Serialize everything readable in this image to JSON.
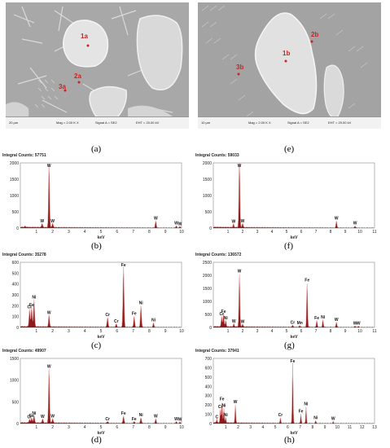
{
  "panels": [
    {
      "id": "a",
      "caption": "(a)",
      "type": "sem",
      "labels": [
        "1a",
        "2a",
        "3a"
      ],
      "scale": "20 µm",
      "mag": "Mag = 2.00 K X",
      "signal": "Signal A = SE2",
      "eht": "EHT = 20.00 kV"
    },
    {
      "id": "e",
      "caption": "(e)",
      "type": "sem",
      "labels": [
        "1b",
        "2b",
        "3b"
      ],
      "scale": "10 µm",
      "mag": "Mag = 2.00 K X",
      "signal": "Signal A = SE2",
      "eht": "EHT = 20.00 kV"
    },
    {
      "id": "b",
      "caption": "(b)",
      "type": "spectrum",
      "header": "Integral Counts: 57751"
    },
    {
      "id": "f",
      "caption": "(f)",
      "type": "spectrum",
      "header": "Integral Counts: 59033"
    },
    {
      "id": "c",
      "caption": "(c)",
      "type": "spectrum",
      "header": "Integral Counts: 35278"
    },
    {
      "id": "g",
      "caption": "(g)",
      "type": "spectrum",
      "header": "Integral Counts: 136572"
    },
    {
      "id": "d",
      "caption": "(d)",
      "type": "spectrum",
      "header": "Integral Counts: 49907"
    },
    {
      "id": "h",
      "caption": "(h)",
      "type": "spectrum",
      "header": "Integral Counts: 37941"
    }
  ],
  "chart_data": [
    {
      "type": "line",
      "panel": "b",
      "xlabel": "keV",
      "xlim": [
        0,
        10
      ],
      "ylim": [
        0,
        2000
      ],
      "yticks": [
        0,
        500,
        1000,
        1500,
        2000
      ],
      "xticks": [
        1,
        2,
        3,
        4,
        5,
        6,
        7,
        8,
        9,
        10
      ],
      "peaks": [
        {
          "x": 0.3,
          "y": 30
        },
        {
          "x": 1.35,
          "y": 120,
          "label": "W"
        },
        {
          "x": 1.78,
          "y": 1950,
          "label": "W"
        },
        {
          "x": 2.0,
          "y": 130,
          "label": "W"
        },
        {
          "x": 8.4,
          "y": 210,
          "label": "W"
        },
        {
          "x": 9.67,
          "y": 60,
          "label": "W"
        },
        {
          "x": 9.9,
          "y": 40,
          "label": "W"
        }
      ]
    },
    {
      "type": "line",
      "panel": "f",
      "xlabel": "keV",
      "xlim": [
        0,
        11
      ],
      "ylim": [
        0,
        2000
      ],
      "yticks": [
        0,
        500,
        1000,
        1500,
        2000
      ],
      "xticks": [
        1,
        2,
        3,
        4,
        5,
        6,
        7,
        8,
        9,
        10,
        11
      ],
      "peaks": [
        {
          "x": 1.38,
          "y": 110,
          "label": "W"
        },
        {
          "x": 1.78,
          "y": 2250,
          "label": "W"
        },
        {
          "x": 2.0,
          "y": 130,
          "label": "W"
        },
        {
          "x": 8.4,
          "y": 210,
          "label": "W"
        },
        {
          "x": 9.67,
          "y": 60,
          "label": "W"
        }
      ]
    },
    {
      "type": "line",
      "panel": "c",
      "xlabel": "keV",
      "xlim": [
        0,
        10
      ],
      "ylim": [
        0,
        600
      ],
      "yticks": [
        0,
        100,
        200,
        300,
        400,
        500,
        600
      ],
      "xticks": [
        1,
        2,
        3,
        4,
        5,
        6,
        7,
        8,
        9,
        10
      ],
      "peaks": [
        {
          "x": 0.57,
          "y": 160,
          "label": "Cr"
        },
        {
          "x": 0.7,
          "y": 180,
          "label": "Fe"
        },
        {
          "x": 0.85,
          "y": 250,
          "label": "Ni"
        },
        {
          "x": 1.78,
          "y": 110,
          "label": "W"
        },
        {
          "x": 5.41,
          "y": 90,
          "label": "Cr"
        },
        {
          "x": 5.95,
          "y": 30,
          "label": "Cr"
        },
        {
          "x": 6.4,
          "y": 560,
          "label": "Fe"
        },
        {
          "x": 7.06,
          "y": 100,
          "label": "Fe"
        },
        {
          "x": 7.48,
          "y": 200,
          "label": "Ni"
        },
        {
          "x": 8.26,
          "y": 40,
          "label": "Ni"
        }
      ]
    },
    {
      "type": "line",
      "panel": "g",
      "xlabel": "keV",
      "xlim": [
        0,
        11
      ],
      "ylim": [
        0,
        2500
      ],
      "yticks": [
        0,
        500,
        1000,
        1500,
        2000,
        2500
      ],
      "xticks": [
        1,
        2,
        3,
        4,
        5,
        6,
        7,
        8,
        9,
        10,
        11
      ],
      "peaks": [
        {
          "x": 0.57,
          "y": 400,
          "label": "Cr"
        },
        {
          "x": 0.7,
          "y": 500,
          "label": "Fe"
        },
        {
          "x": 0.85,
          "y": 250,
          "label": "Ni"
        },
        {
          "x": 1.4,
          "y": 120,
          "label": "W"
        },
        {
          "x": 1.78,
          "y": 2050,
          "label": "W"
        },
        {
          "x": 2.0,
          "y": 110,
          "label": "W"
        },
        {
          "x": 5.41,
          "y": 80,
          "label": "Cr"
        },
        {
          "x": 5.9,
          "y": 60,
          "label": "Mn"
        },
        {
          "x": 6.4,
          "y": 1700,
          "label": "Fe"
        },
        {
          "x": 7.06,
          "y": 250,
          "label": "Fe"
        },
        {
          "x": 7.48,
          "y": 280,
          "label": "Ni"
        },
        {
          "x": 8.4,
          "y": 190,
          "label": "W"
        },
        {
          "x": 9.67,
          "y": 50,
          "label": "W"
        },
        {
          "x": 9.9,
          "y": 40,
          "label": "W"
        }
      ]
    },
    {
      "type": "line",
      "panel": "d",
      "xlabel": "keV",
      "xlim": [
        0,
        10
      ],
      "ylim": [
        0,
        1500
      ],
      "yticks": [
        0,
        500,
        1000,
        1500
      ],
      "xticks": [
        1,
        2,
        3,
        4,
        5,
        6,
        7,
        8,
        9,
        10
      ],
      "peaks": [
        {
          "x": 0.57,
          "y": 80,
          "label": "Cr"
        },
        {
          "x": 0.7,
          "y": 110,
          "label": "Fe"
        },
        {
          "x": 0.85,
          "y": 170,
          "label": "Ni"
        },
        {
          "x": 1.38,
          "y": 90,
          "label": "W"
        },
        {
          "x": 1.78,
          "y": 1250,
          "label": "W"
        },
        {
          "x": 2.0,
          "y": 100,
          "label": "W"
        },
        {
          "x": 5.41,
          "y": 40,
          "label": "Cr"
        },
        {
          "x": 6.4,
          "y": 170,
          "label": "Fe"
        },
        {
          "x": 7.06,
          "y": 40,
          "label": "Fe"
        },
        {
          "x": 7.48,
          "y": 130,
          "label": "Ni"
        },
        {
          "x": 8.4,
          "y": 100,
          "label": "W"
        },
        {
          "x": 9.67,
          "y": 40,
          "label": "W"
        },
        {
          "x": 9.9,
          "y": 30,
          "label": "W"
        }
      ]
    },
    {
      "type": "line",
      "panel": "h",
      "xlabel": "keV",
      "xlim": [
        0,
        13
      ],
      "ylim": [
        0,
        700
      ],
      "yticks": [
        0,
        100,
        200,
        300,
        400,
        500,
        600,
        700
      ],
      "xticks": [
        1,
        2,
        3,
        4,
        5,
        6,
        7,
        8,
        9,
        10,
        11,
        12,
        13
      ],
      "peaks": [
        {
          "x": 0.28,
          "y": 40,
          "label": "C"
        },
        {
          "x": 0.57,
          "y": 150,
          "label": "Cr"
        },
        {
          "x": 0.7,
          "y": 230,
          "label": "Fe"
        },
        {
          "x": 0.85,
          "y": 160,
          "label": "Ni"
        },
        {
          "x": 1.0,
          "y": 60,
          "label": "Ni"
        },
        {
          "x": 1.78,
          "y": 200,
          "label": "W"
        },
        {
          "x": 5.41,
          "y": 60,
          "label": "Cr"
        },
        {
          "x": 6.4,
          "y": 650,
          "label": "Fe"
        },
        {
          "x": 7.06,
          "y": 100,
          "label": "Fe"
        },
        {
          "x": 7.48,
          "y": 180,
          "label": "Ni"
        },
        {
          "x": 8.26,
          "y": 30,
          "label": "Ni"
        },
        {
          "x": 9.67,
          "y": 20,
          "label": "W"
        }
      ]
    }
  ]
}
